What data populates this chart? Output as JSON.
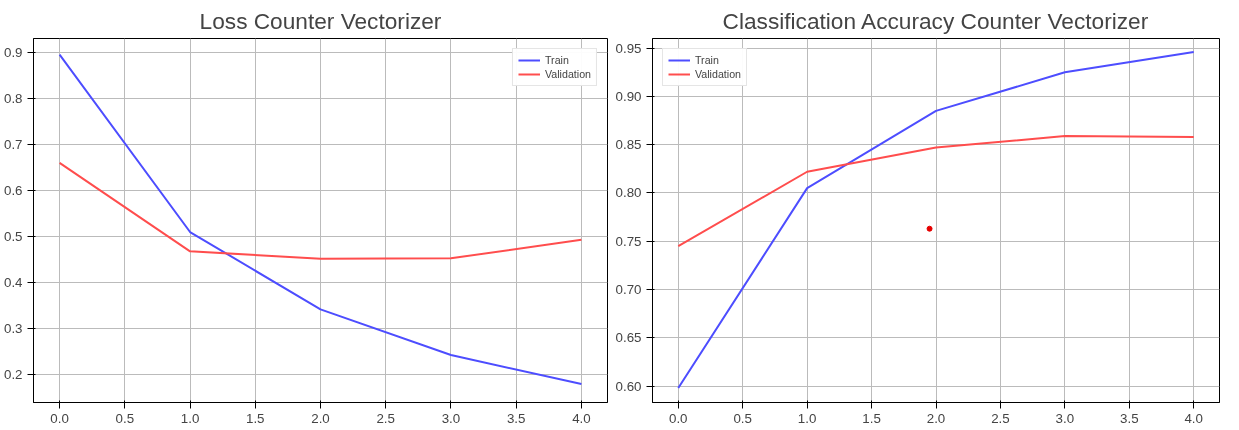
{
  "chart_data": [
    {
      "type": "line",
      "title": "Loss Counter Vectorizer",
      "x": [
        0,
        1,
        2,
        3,
        4
      ],
      "series": [
        {
          "name": "Train",
          "color": "#4d4dff",
          "values": [
            0.895,
            0.51,
            0.342,
            0.243,
            0.18
          ]
        },
        {
          "name": "Validation",
          "color": "#ff4d4d",
          "values": [
            0.66,
            0.468,
            0.452,
            0.453,
            0.493
          ]
        }
      ],
      "xlim": [
        -0.2,
        4.2
      ],
      "ylim": [
        0.14,
        0.93
      ],
      "xticks": [
        {
          "value": 0,
          "label": "0.0"
        },
        0.5,
        {
          "value": 1,
          "label": "1.0"
        },
        1.5,
        {
          "value": 2,
          "label": "2.0"
        },
        2.5,
        {
          "value": 3,
          "label": "3.0"
        },
        3.5,
        {
          "value": 4,
          "label": "4.0"
        }
      ],
      "yticks": [
        0.2,
        0.3,
        0.4,
        0.5,
        0.6,
        0.7,
        0.8,
        0.9
      ],
      "grid": true,
      "legend": "top right",
      "marker": "none",
      "line_style": "solid"
    },
    {
      "type": "line",
      "title": "Classification Accuracy Counter Vectorizer",
      "x": [
        0,
        1,
        2,
        3,
        4
      ],
      "series": [
        {
          "name": "Train",
          "color": "#4d4dff",
          "values": [
            0.598,
            0.805,
            0.885,
            0.925,
            0.946
          ]
        },
        {
          "name": "Validation",
          "color": "#ff4d4d",
          "values": [
            0.745,
            0.822,
            0.847,
            0.859,
            0.858
          ]
        },
        {
          "type": "scatter",
          "color": "#e60000",
          "x": [
            1.95
          ],
          "values": [
            0.763
          ]
        }
      ],
      "xlim": [
        -0.2,
        4.2
      ],
      "ylim": [
        0.583,
        0.96
      ],
      "xticks": [
        {
          "value": 0,
          "label": "0.0"
        },
        0.5,
        {
          "value": 1,
          "label": "1.0"
        },
        1.5,
        {
          "value": 2,
          "label": "2.0"
        },
        2.5,
        {
          "value": 3,
          "label": "3.0"
        },
        3.5,
        {
          "value": 4,
          "label": "4.0"
        }
      ],
      "yticks": [
        {
          "value": 0.6,
          "label": "0.60"
        },
        0.65,
        {
          "value": 0.7,
          "label": "0.70"
        },
        0.75,
        {
          "value": 0.8,
          "label": "0.80"
        },
        0.85,
        {
          "value": 0.9,
          "label": "0.90"
        },
        0.95
      ],
      "grid": true,
      "legend": "top left",
      "marker": "none",
      "line_style": "solid"
    }
  ]
}
